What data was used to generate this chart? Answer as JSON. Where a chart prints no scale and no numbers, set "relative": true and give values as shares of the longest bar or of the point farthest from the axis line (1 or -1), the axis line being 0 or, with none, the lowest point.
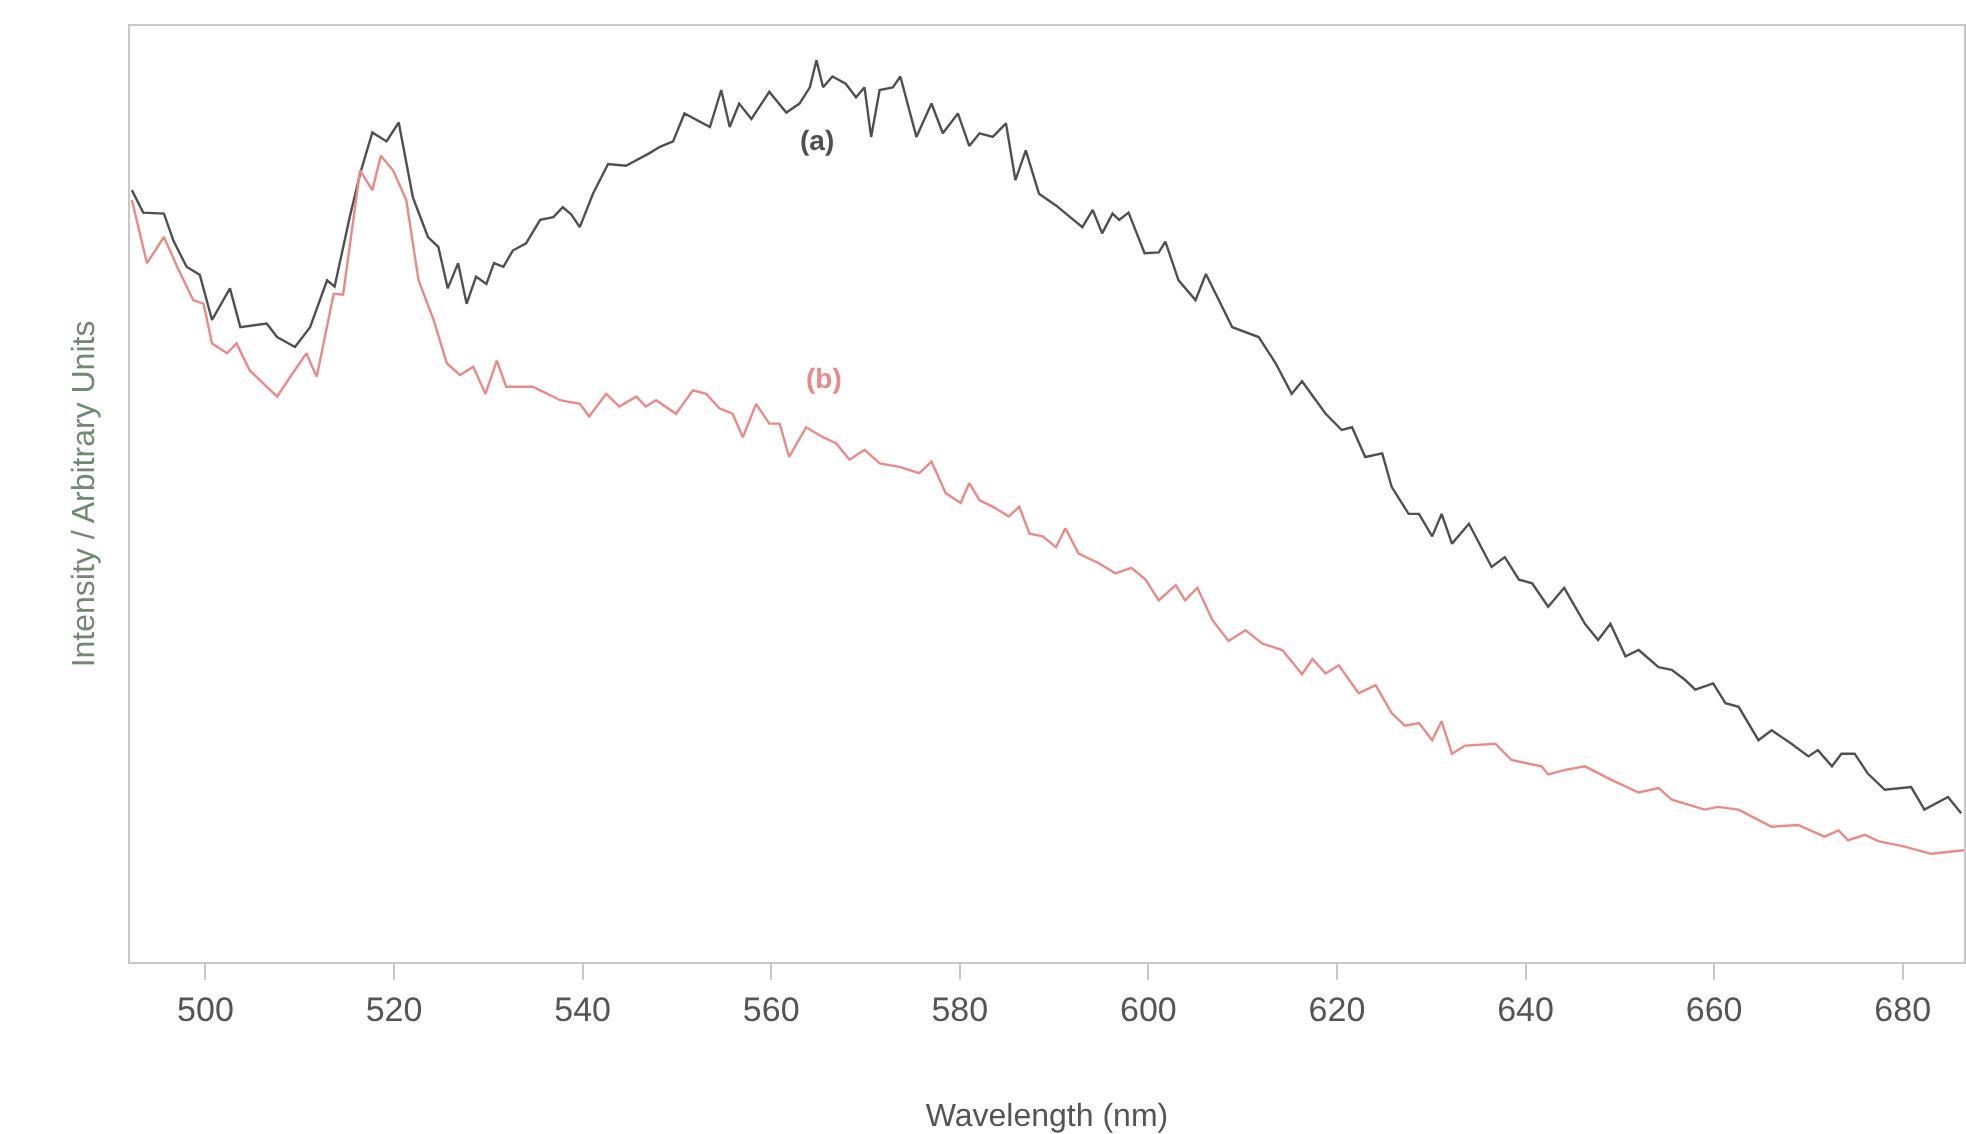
{
  "chart_data": {
    "type": "line",
    "relative": true,
    "xlabel": "Wavelength (nm)",
    "ylabel": "Intensity / Arbitrary Units",
    "xlim": [
      492,
      686.5
    ],
    "xticks": [
      500,
      520,
      540,
      560,
      580,
      600,
      620,
      640,
      660,
      680
    ],
    "marker": "none",
    "line_style": "solid",
    "series": [
      {
        "name": "(a)",
        "color": "#505050",
        "x": [
          492.2,
          493.4,
          495.6,
          496.6,
          498.0,
          499.4,
          500.7,
          502.6,
          503.7,
          506.5,
          507.6,
          509.5,
          511.1,
          512.9,
          513.7,
          515.3,
          516.4,
          517.7,
          519.2,
          520.5,
          522.0,
          523.6,
          524.7,
          525.7,
          526.8,
          527.7,
          528.7,
          529.8,
          530.6,
          531.6,
          532.6,
          534.0,
          535.5,
          536.9,
          537.9,
          538.8,
          539.7,
          541.1,
          542.7,
          544.6,
          547.1,
          548.2,
          549.6,
          550.8,
          553.5,
          554.7,
          555.6,
          556.6,
          557.9,
          559.8,
          561.6,
          563.0,
          564.1,
          564.8,
          565.5,
          566.5,
          567.9,
          569.0,
          569.9,
          570.6,
          571.5,
          572.9,
          573.7,
          575.4,
          577.0,
          578.2,
          579.8,
          581.0,
          582.1,
          583.5,
          584.9,
          585.9,
          587.0,
          588.4,
          590.2,
          593.0,
          594.1,
          595.1,
          596.2,
          596.9,
          597.9,
          599.6,
          601.1,
          601.8,
          603.2,
          605.0,
          606.1,
          608.9,
          611.7,
          613.5,
          615.2,
          616.3,
          618.8,
          620.5,
          621.6,
          623.0,
          624.8,
          625.8,
          627.6,
          628.7,
          630.1,
          631.1,
          632.2,
          634.0,
          636.4,
          637.8,
          639.3,
          640.7,
          642.4,
          644.1,
          646.3,
          647.7,
          649.0,
          650.6,
          652.0,
          654.1,
          655.5,
          656.9,
          658.0,
          659.9,
          661.2,
          662.6,
          664.7,
          666.1,
          668.2,
          670.0,
          671.0,
          672.5,
          673.5,
          674.9,
          676.3,
          678.1,
          680.9,
          682.3,
          684.8,
          686.2
        ],
        "values": [
          0.856,
          0.831,
          0.83,
          0.8,
          0.771,
          0.762,
          0.712,
          0.747,
          0.704,
          0.708,
          0.693,
          0.682,
          0.704,
          0.756,
          0.749,
          0.826,
          0.874,
          0.92,
          0.91,
          0.931,
          0.848,
          0.804,
          0.793,
          0.747,
          0.775,
          0.73,
          0.76,
          0.752,
          0.775,
          0.771,
          0.789,
          0.797,
          0.823,
          0.826,
          0.837,
          0.829,
          0.815,
          0.852,
          0.885,
          0.883,
          0.897,
          0.904,
          0.91,
          0.941,
          0.926,
          0.967,
          0.926,
          0.952,
          0.935,
          0.965,
          0.942,
          0.952,
          0.97,
          1.0,
          0.97,
          0.982,
          0.974,
          0.959,
          0.97,
          0.915,
          0.967,
          0.97,
          0.982,
          0.915,
          0.952,
          0.919,
          0.941,
          0.905,
          0.919,
          0.915,
          0.93,
          0.867,
          0.9,
          0.852,
          0.839,
          0.815,
          0.834,
          0.808,
          0.83,
          0.823,
          0.831,
          0.786,
          0.787,
          0.799,
          0.756,
          0.734,
          0.763,
          0.704,
          0.693,
          0.664,
          0.63,
          0.644,
          0.608,
          0.59,
          0.593,
          0.56,
          0.564,
          0.527,
          0.497,
          0.497,
          0.472,
          0.497,
          0.464,
          0.486,
          0.438,
          0.449,
          0.424,
          0.42,
          0.394,
          0.415,
          0.375,
          0.357,
          0.375,
          0.339,
          0.346,
          0.327,
          0.324,
          0.313,
          0.302,
          0.309,
          0.287,
          0.283,
          0.246,
          0.257,
          0.242,
          0.228,
          0.235,
          0.217,
          0.231,
          0.231,
          0.209,
          0.191,
          0.194,
          0.169,
          0.183,
          0.165
        ]
      },
      {
        "name": "(b)",
        "color": "#e88a8a",
        "x": [
          492.2,
          493.8,
          495.6,
          497.0,
          498.7,
          499.8,
          500.7,
          502.3,
          503.3,
          504.7,
          506.1,
          507.6,
          509.0,
          510.7,
          511.8,
          513.6,
          514.6,
          516.4,
          517.7,
          518.6,
          519.9,
          521.3,
          522.6,
          524.2,
          525.6,
          527.0,
          528.4,
          529.7,
          530.9,
          531.9,
          534.7,
          536.5,
          537.6,
          539.7,
          540.7,
          542.5,
          543.9,
          545.7,
          546.7,
          547.8,
          549.9,
          551.7,
          553.1,
          554.5,
          555.9,
          557.0,
          558.4,
          559.8,
          560.9,
          561.9,
          563.7,
          565.5,
          566.9,
          568.3,
          569.9,
          571.5,
          573.6,
          575.7,
          577.0,
          578.5,
          580.1,
          581.0,
          582.1,
          583.5,
          585.2,
          586.3,
          587.4,
          588.8,
          590.2,
          591.2,
          592.6,
          594.8,
          596.5,
          598.2,
          599.7,
          601.1,
          602.9,
          603.9,
          605.2,
          606.8,
          608.5,
          610.3,
          612.1,
          614.2,
          616.3,
          617.4,
          618.8,
          620.2,
          622.3,
          624.1,
          625.8,
          627.2,
          628.7,
          630.1,
          631.1,
          632.2,
          633.6,
          636.8,
          638.5,
          641.7,
          642.4,
          644.2,
          646.3,
          649.1,
          652.0,
          654.1,
          655.5,
          659.0,
          660.4,
          662.6,
          666.1,
          668.9,
          671.7,
          673.2,
          674.2,
          676.0,
          677.4,
          680.2,
          683.0,
          686.5
        ],
        "values": [
          0.845,
          0.775,
          0.804,
          0.771,
          0.734,
          0.73,
          0.686,
          0.675,
          0.686,
          0.656,
          0.642,
          0.627,
          0.649,
          0.675,
          0.649,
          0.741,
          0.74,
          0.878,
          0.856,
          0.894,
          0.878,
          0.845,
          0.756,
          0.712,
          0.664,
          0.651,
          0.66,
          0.63,
          0.667,
          0.638,
          0.638,
          0.629,
          0.623,
          0.619,
          0.605,
          0.63,
          0.616,
          0.627,
          0.616,
          0.623,
          0.608,
          0.634,
          0.63,
          0.614,
          0.608,
          0.582,
          0.619,
          0.597,
          0.597,
          0.56,
          0.593,
          0.582,
          0.575,
          0.557,
          0.568,
          0.553,
          0.549,
          0.542,
          0.555,
          0.52,
          0.509,
          0.531,
          0.512,
          0.505,
          0.494,
          0.505,
          0.475,
          0.472,
          0.46,
          0.481,
          0.453,
          0.442,
          0.431,
          0.437,
          0.424,
          0.401,
          0.418,
          0.401,
          0.415,
          0.379,
          0.356,
          0.368,
          0.353,
          0.346,
          0.319,
          0.336,
          0.32,
          0.329,
          0.298,
          0.307,
          0.276,
          0.262,
          0.265,
          0.246,
          0.267,
          0.231,
          0.24,
          0.242,
          0.224,
          0.217,
          0.208,
          0.213,
          0.217,
          0.202,
          0.188,
          0.193,
          0.18,
          0.169,
          0.172,
          0.169,
          0.15,
          0.152,
          0.139,
          0.146,
          0.135,
          0.141,
          0.134,
          0.128,
          0.12,
          0.124
        ]
      }
    ]
  }
}
